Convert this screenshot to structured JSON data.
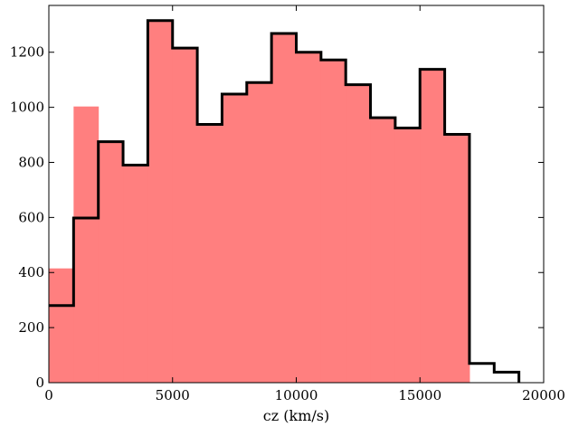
{
  "chart_data": {
    "type": "bar",
    "subtype": "histogram",
    "title": "",
    "xlabel": "cz (km/s)",
    "ylabel": "",
    "xlim": [
      0,
      20000
    ],
    "ylim": [
      0,
      1370
    ],
    "xticks": [
      0,
      5000,
      10000,
      15000,
      20000
    ],
    "yticks": [
      0,
      200,
      400,
      600,
      800,
      1000,
      1200
    ],
    "bin_edges": [
      0,
      1000,
      2000,
      3000,
      4000,
      5000,
      6000,
      7000,
      8000,
      9000,
      10000,
      11000,
      12000,
      13000,
      14000,
      15000,
      16000,
      17000,
      18000,
      19000
    ],
    "grid": false,
    "series": [
      {
        "style": "filled",
        "color": "#ff7f7f",
        "values": [
          415,
          1003,
          875,
          790,
          1315,
          1215,
          938,
          1048,
          1090,
          1268,
          1200,
          1172,
          1082,
          962,
          925,
          1138,
          902,
          0,
          0
        ]
      },
      {
        "style": "step",
        "color": "#000000",
        "values": [
          280,
          598,
          875,
          790,
          1315,
          1215,
          938,
          1048,
          1090,
          1268,
          1200,
          1172,
          1082,
          962,
          925,
          1138,
          902,
          70,
          38
        ]
      }
    ]
  }
}
